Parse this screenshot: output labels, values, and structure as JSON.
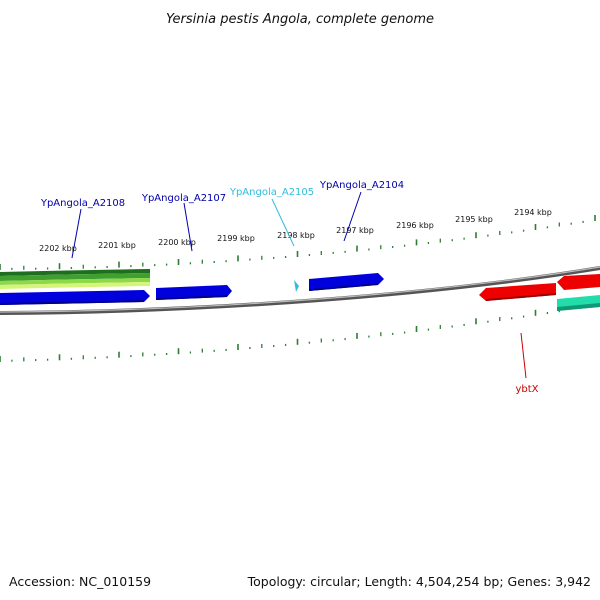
{
  "title": "Yersinia pestis Angola, complete genome",
  "footer": {
    "accession": "Accession: NC_010159",
    "summary": "Topology: circular; Length: 4,504,254 bp; Genes: 3,942"
  },
  "colors": {
    "backbone": "#888888",
    "ticks": "#2e7d32",
    "plus_gene": "#0000dd",
    "minus_gene": "#ee0000",
    "teal_gene": "#22ddaa",
    "highlight_gene": "#33bbdd",
    "green_bands": [
      "#2a8a2a",
      "#5fbf3a",
      "#c9f05a"
    ]
  },
  "ruler": {
    "labels": [
      "2202 kbp",
      "2201 kbp",
      "2200 kbp",
      "2199 kbp",
      "2198 kbp",
      "2197 kbp",
      "2196 kbp",
      "2195 kbp",
      "2194 kbp"
    ]
  },
  "genes": [
    {
      "name": "YpAngola_A2108",
      "color": "#0000aa"
    },
    {
      "name": "YpAngola_A2107",
      "color": "#0000aa"
    },
    {
      "name": "YpAngola_A2105",
      "color": "#33bbdd"
    },
    {
      "name": "YpAngola_A2104",
      "color": "#0000aa"
    },
    {
      "name": "ybtX",
      "color": "#cc0000"
    }
  ]
}
